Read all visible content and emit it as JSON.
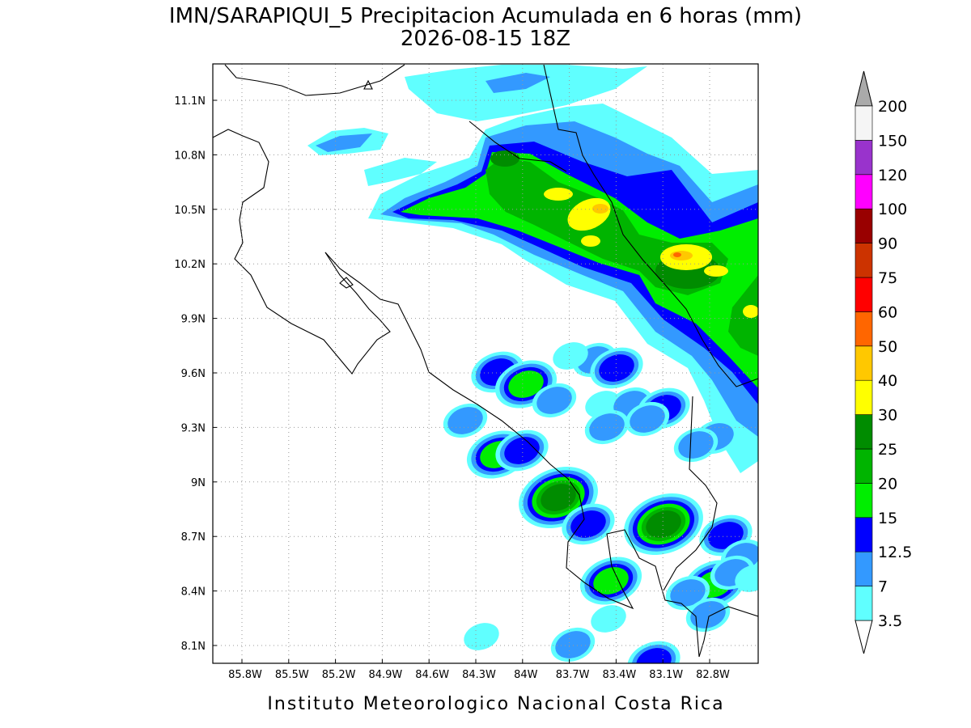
{
  "title": "IMN/SARAPIQUI_5 Precipitacion Acumulada en 6 horas (mm)",
  "subtitle": "2026-08-15 18Z",
  "map": {
    "lon_labels": [
      "85.8W",
      "85.5W",
      "85.2W",
      "84.9W",
      "84.6W",
      "84.3W",
      "84W",
      "83.7W",
      "83.4W",
      "83.1W",
      "82.8W"
    ],
    "lat_labels": [
      "11.1N",
      "10.8N",
      "10.5N",
      "10.2N",
      "9.9N",
      "9.6N",
      "9.3N",
      "9N",
      "8.7N",
      "8.4N",
      "8.1N"
    ]
  },
  "colorbar": {
    "levels": [
      3.5,
      7,
      12.5,
      15,
      20,
      25,
      30,
      40,
      50,
      60,
      75,
      90,
      100,
      120,
      150,
      200
    ],
    "colors": [
      "#ffffff",
      "#60ffff",
      "#3399ff",
      "#0000ff",
      "#00ee00",
      "#00b400",
      "#008c00",
      "#ffff00",
      "#ffc800",
      "#ff6600",
      "#ff0000",
      "#cc3300",
      "#990000",
      "#ff00ff",
      "#9933cc",
      "#f5f5f5",
      "#aaaaaa"
    ]
  },
  "credit": "Instituto Meteorologico Nacional Costa Rica"
}
